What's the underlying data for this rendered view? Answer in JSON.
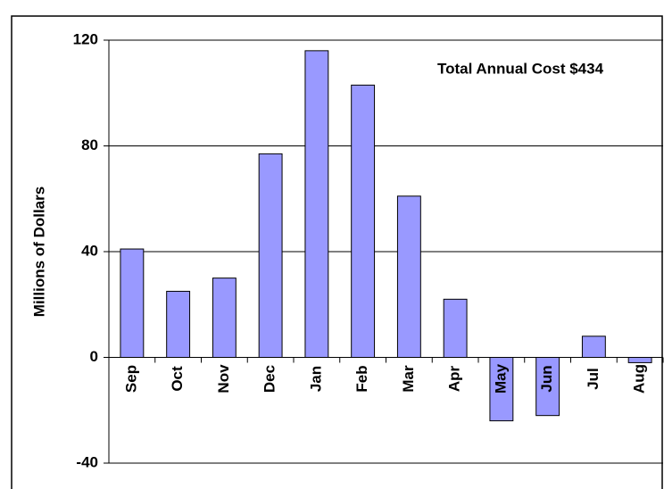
{
  "chart_data": {
    "type": "bar",
    "annotation": "Total Annual Cost $434",
    "y_label": "Millions of Dollars",
    "categories": [
      "Sep",
      "Oct",
      "Nov",
      "Dec",
      "Jan",
      "Feb",
      "Mar",
      "Apr",
      "May",
      "Jun",
      "Jul",
      "Aug"
    ],
    "values": [
      41,
      25,
      30,
      77,
      116,
      103,
      61,
      22,
      -24,
      -22,
      8,
      -2
    ],
    "color": "#9999ff",
    "ylim": [
      -40,
      120
    ],
    "yticks": [
      -40,
      0,
      40,
      80,
      120
    ],
    "grid": true
  }
}
